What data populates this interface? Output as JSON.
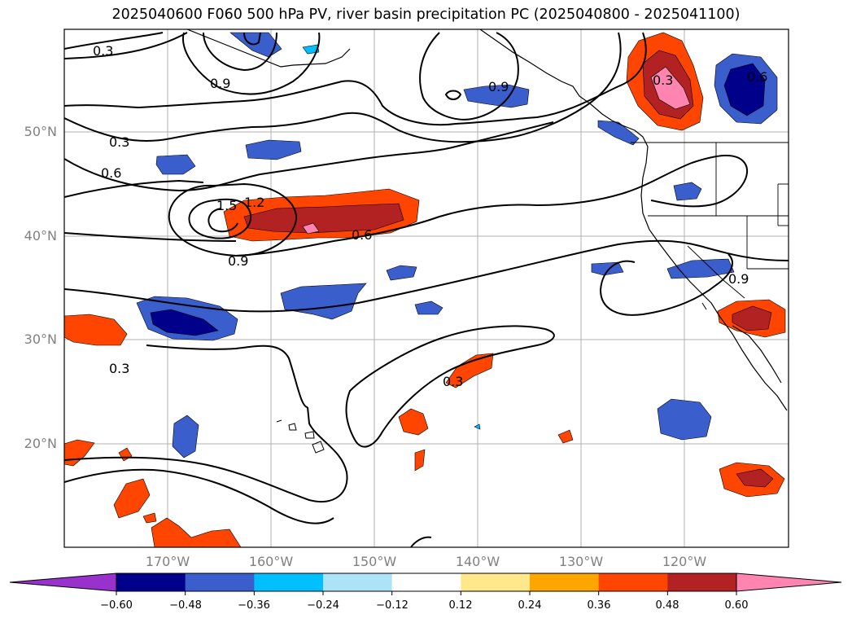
{
  "title": "2025040600 F060 500 hPa PV, river basin precipitation PC (2025040800 - 2025041100)",
  "axes": {
    "lat_ticks": [
      "50°N",
      "40°N",
      "30°N",
      "20°N"
    ],
    "lon_ticks": [
      "170°W",
      "160°W",
      "150°W",
      "140°W",
      "130°W",
      "120°W"
    ],
    "lat_range": [
      10,
      60
    ],
    "lon_range": [
      -180,
      -110
    ],
    "grid": true
  },
  "contour_labels": [
    "0.3",
    "0.9",
    "0.9",
    "0.3",
    "0.6",
    "1.5",
    "1.2",
    "0.6",
    "0.9",
    "0.3",
    "0.3",
    "0.6",
    "0.3",
    "0.9"
  ],
  "colorbar": {
    "ticks": [
      "−0.60",
      "−0.48",
      "−0.36",
      "−0.24",
      "−0.12",
      "0.12",
      "0.24",
      "0.36",
      "0.48",
      "0.60"
    ],
    "colors": [
      "#9932CC",
      "#00008B",
      "#3A5FCD",
      "#00BFFF",
      "#ADE3F7",
      "#FFFFFF",
      "#FFE88C",
      "#FFA500",
      "#FF4500",
      "#B22222",
      "#FF85B0"
    ],
    "extend": "both"
  },
  "colors": {
    "neg_strong": "#00008B",
    "neg_mid": "#3A5FCD",
    "neg_light": "#00BFFF",
    "pos_light": "#FFE88C",
    "pos_mid": "#FF4500",
    "pos_strong": "#B22222",
    "pos_max": "#FF85B0"
  }
}
